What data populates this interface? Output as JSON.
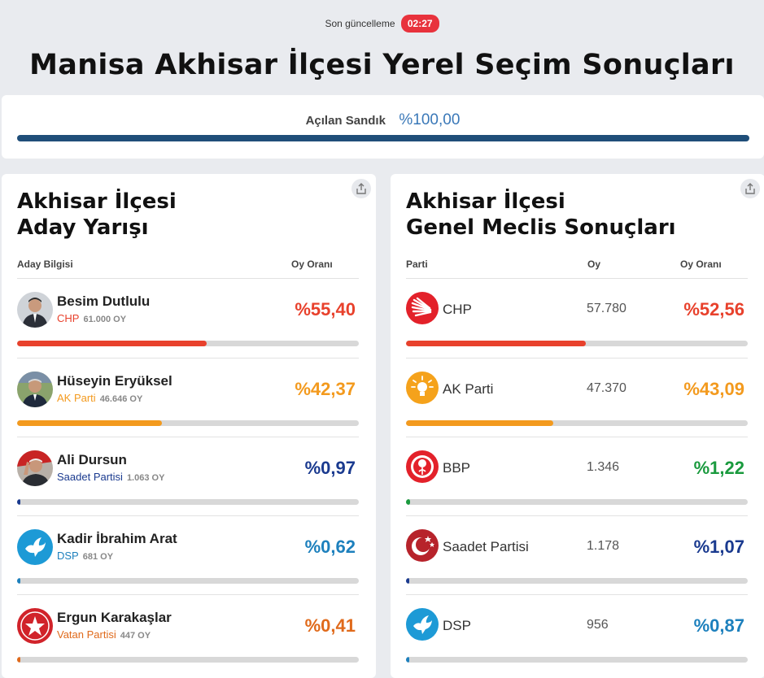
{
  "header": {
    "updated_label": "Son güncelleme",
    "updated_time": "02:27",
    "title": "Manisa Akhisar İlçesi Yerel Seçim Sonuçları"
  },
  "sandik": {
    "label": "Açılan Sandık",
    "value": "%100,00",
    "progress": 1.0
  },
  "candidates": {
    "title_line1": "Akhisar İlçesi",
    "title_line2": "Aday Yarışı",
    "col_info": "Aday Bilgisi",
    "col_rate": "Oy Oranı",
    "items": [
      {
        "name": "Besim Dutlulu",
        "party": "CHP",
        "votes": "61.000 OY",
        "pct": "%55,40",
        "value": 55.4,
        "color": "#e8412c",
        "party_color": "#e8412c"
      },
      {
        "name": "Hüseyin Eryüksel",
        "party": "AK Parti",
        "votes": "46.646 OY",
        "pct": "%42,37",
        "value": 42.37,
        "color": "#f39a1e",
        "party_color": "#f39a1e"
      },
      {
        "name": "Ali Dursun",
        "party": "Saadet Partisi",
        "votes": "1.063 OY",
        "pct": "%0,97",
        "value": 0.97,
        "color": "#1a3a8f",
        "party_color": "#1a3a8f"
      },
      {
        "name": "Kadir İbrahim Arat",
        "party": "DSP",
        "votes": "681 OY",
        "pct": "%0,62",
        "value": 0.62,
        "color": "#1d80bd",
        "party_color": "#1d80bd"
      },
      {
        "name": "Ergun Karakaşlar",
        "party": "Vatan Partisi",
        "votes": "447 OY",
        "pct": "%0,41",
        "value": 0.41,
        "color": "#e06a1b",
        "party_color": "#e06a1b"
      }
    ]
  },
  "council": {
    "title_line1": "Akhisar İlçesi",
    "title_line2": "Genel Meclis Sonuçları",
    "col_party": "Parti",
    "col_votes": "Oy",
    "col_rate": "Oy Oranı",
    "items": [
      {
        "party": "CHP",
        "votes": "57.780",
        "pct": "%52,56",
        "value": 52.56,
        "color": "#e8412c"
      },
      {
        "party": "AK Parti",
        "votes": "47.370",
        "pct": "%43,09",
        "value": 43.09,
        "color": "#f39a1e"
      },
      {
        "party": "BBP",
        "votes": "1.346",
        "pct": "%1,22",
        "value": 1.22,
        "color": "#1a9a3e"
      },
      {
        "party": "Saadet Partisi",
        "votes": "1.178",
        "pct": "%1,07",
        "value": 1.07,
        "color": "#1a3a8f"
      },
      {
        "party": "DSP",
        "votes": "956",
        "pct": "%0,87",
        "value": 0.87,
        "color": "#1d80bd"
      }
    ]
  }
}
